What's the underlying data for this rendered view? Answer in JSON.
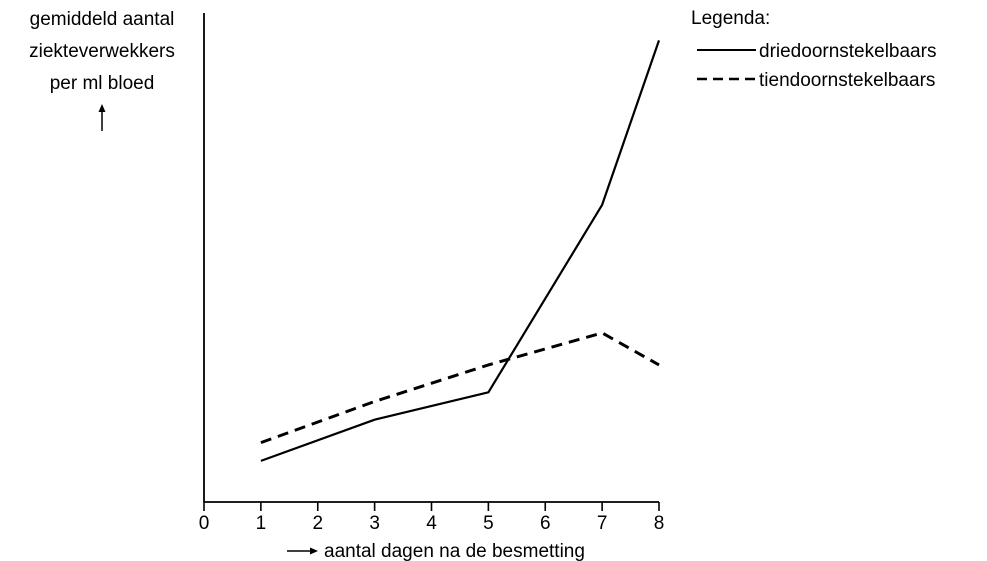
{
  "chart_data": {
    "type": "line",
    "title": "",
    "xlabel": "aantal dagen na de besmetting",
    "ylabel": [
      "gemiddeld aantal",
      "ziekteverwekkers",
      "per ml bloed"
    ],
    "x_ticks": [
      0,
      1,
      2,
      3,
      4,
      5,
      6,
      7,
      8
    ],
    "xlim": [
      0,
      8
    ],
    "ylim": [
      0,
      100
    ],
    "y_ticks_labeled": false,
    "grid": false,
    "legend": {
      "title": "Legenda:",
      "position": "top-right"
    },
    "series": [
      {
        "name": "driedoornstekelbaars",
        "style": "solid",
        "color": "#000000",
        "x": [
          1,
          3,
          5,
          7,
          8
        ],
        "y": [
          9,
          18,
          24,
          65,
          101
        ]
      },
      {
        "name": "tiendoornstekelbaars",
        "style": "dashed",
        "color": "#000000",
        "x": [
          1,
          3,
          5,
          7,
          8
        ],
        "y": [
          13,
          22,
          30,
          37,
          30
        ]
      }
    ]
  }
}
